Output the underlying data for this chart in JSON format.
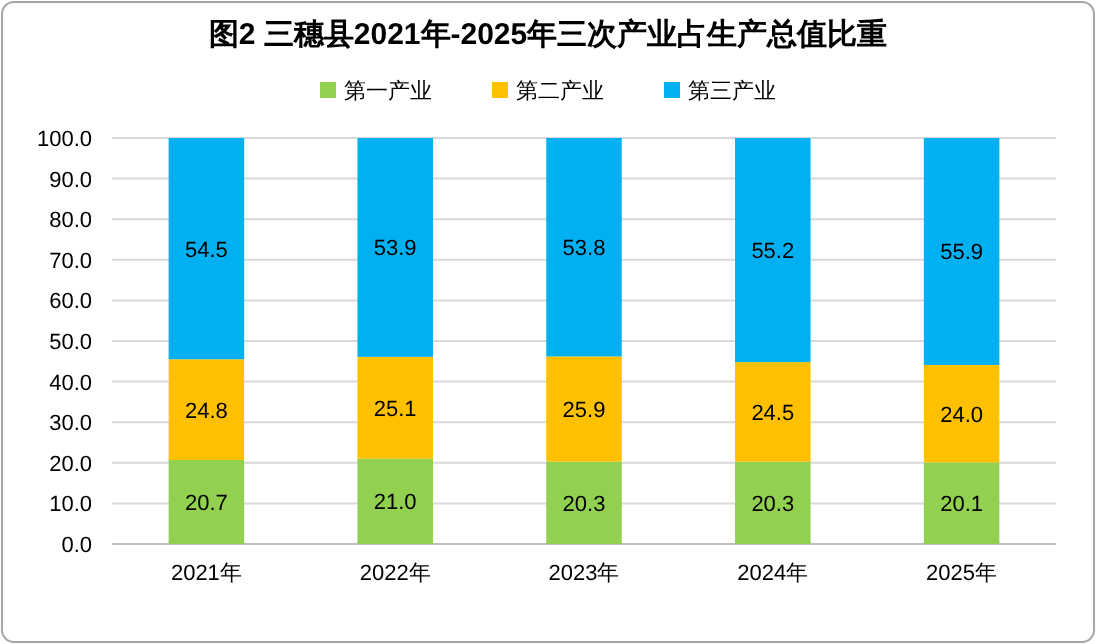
{
  "chart_data": {
    "type": "bar",
    "stacked": true,
    "title": "图2 三穗县2021年-2025年三次产业占生产总值比重",
    "categories": [
      "2021年",
      "2022年",
      "2023年",
      "2024年",
      "2025年"
    ],
    "series": [
      {
        "name": "第一产业",
        "color": "#92d050",
        "values": [
          20.7,
          21.0,
          20.3,
          20.3,
          20.1
        ],
        "value_labels": [
          "20.7",
          "21.0",
          "20.3",
          "20.3",
          "20.1"
        ]
      },
      {
        "name": "第二产业",
        "color": "#ffc000",
        "values": [
          24.8,
          25.1,
          25.9,
          24.5,
          24.0
        ],
        "value_labels": [
          "24.8",
          "25.1",
          "25.9",
          "24.5",
          "24.0"
        ]
      },
      {
        "name": "第三产业",
        "color": "#00b0f0",
        "values": [
          54.5,
          53.9,
          53.8,
          55.2,
          55.9
        ],
        "value_labels": [
          "54.5",
          "53.9",
          "53.8",
          "55.2",
          "55.9"
        ]
      }
    ],
    "ylim": [
      0,
      100
    ],
    "yticks": [
      {
        "value": 0,
        "label": "0.0"
      },
      {
        "value": 10,
        "label": "10.0"
      },
      {
        "value": 20,
        "label": "20.0"
      },
      {
        "value": 30,
        "label": "30.0"
      },
      {
        "value": 40,
        "label": "40.0"
      },
      {
        "value": 50,
        "label": "50.0"
      },
      {
        "value": 60,
        "label": "60.0"
      },
      {
        "value": 70,
        "label": "70.0"
      },
      {
        "value": 80,
        "label": "80.0"
      },
      {
        "value": 90,
        "label": "90.0"
      },
      {
        "value": 100,
        "label": "100.0"
      }
    ],
    "grid": "y",
    "legend": "top"
  }
}
